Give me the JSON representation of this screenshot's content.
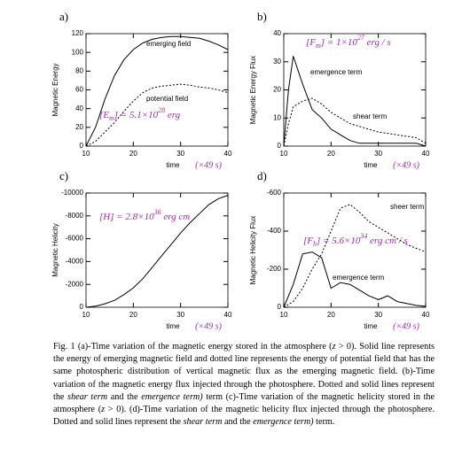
{
  "chart_data": [
    {
      "type": "line",
      "label": "a)",
      "ylabel": "Magnetic Energy",
      "xlabel": "time",
      "xunit": "(×49 s)",
      "annotation": [
        {
          "t": "[E"
        },
        {
          "t": "m",
          "sub": true
        },
        {
          "t": "] = 5.1×10"
        },
        {
          "t": "28",
          "sup": true
        },
        {
          "t": " erg"
        }
      ],
      "x": [
        10,
        12,
        14,
        16,
        18,
        20,
        22,
        24,
        26,
        28,
        30,
        32,
        34,
        36,
        38,
        40
      ],
      "series": [
        {
          "name": "emerging field",
          "color": "#000000",
          "dashed": false,
          "values": [
            0,
            20,
            50,
            75,
            92,
            103,
            110,
            114,
            116,
            117,
            117,
            116,
            115,
            112,
            108,
            103
          ]
        },
        {
          "name": "potential field",
          "color": "#000000",
          "dashed": true,
          "values": [
            0,
            5,
            15,
            25,
            37,
            48,
            57,
            62,
            64,
            65,
            66,
            65,
            63,
            62,
            60,
            57
          ]
        }
      ],
      "xlim": [
        10,
        40
      ],
      "xticks": [
        10,
        20,
        30,
        40
      ],
      "ylim": [
        0,
        120
      ],
      "yticks": [
        0,
        20,
        40,
        60,
        80,
        100,
        120
      ]
    },
    {
      "type": "line",
      "label": "b)",
      "ylabel": "Magnetic Energy Flux",
      "xlabel": "time",
      "xunit": "(×49 s)",
      "annotation": [
        {
          "t": "[F"
        },
        {
          "t": "m",
          "sub": true
        },
        {
          "t": "] = 1×10"
        },
        {
          "t": "27",
          "sup": true
        },
        {
          "t": " erg / s"
        }
      ],
      "x": [
        10,
        11,
        12,
        13,
        14,
        16,
        18,
        20,
        22,
        24,
        26,
        28,
        30,
        34,
        38,
        40
      ],
      "series": [
        {
          "name": "emergence term",
          "color": "#000000",
          "dashed": false,
          "values": [
            0,
            20,
            32,
            27,
            22,
            13,
            10,
            6,
            4,
            2,
            1,
            1,
            1,
            1,
            1,
            0
          ]
        },
        {
          "name": "shear term",
          "color": "#000000",
          "dashed": true,
          "values": [
            0,
            8,
            14,
            15,
            16,
            17,
            15,
            12,
            10,
            8,
            7,
            6,
            5,
            4,
            3,
            1
          ]
        }
      ],
      "xlim": [
        10,
        40
      ],
      "xticks": [
        10,
        20,
        30,
        40
      ],
      "ylim": [
        0,
        40
      ],
      "yticks": [
        0,
        10,
        20,
        30,
        40
      ]
    },
    {
      "type": "line",
      "label": "c)",
      "ylabel": "Magnetic Helicity",
      "xlabel": "time",
      "xunit": "(×49 s)",
      "annotation": [
        {
          "t": "[H] = 2.8×10"
        },
        {
          "t": "36",
          "sup": true
        },
        {
          "t": " erg cm"
        }
      ],
      "x": [
        10,
        12,
        14,
        16,
        18,
        20,
        22,
        24,
        26,
        28,
        30,
        32,
        34,
        36,
        38,
        40
      ],
      "series": [
        {
          "color": "#000000",
          "dashed": false,
          "values": [
            0,
            -100,
            -300,
            -600,
            -1100,
            -1700,
            -2500,
            -3500,
            -4500,
            -5500,
            -6500,
            -7400,
            -8200,
            -9000,
            -9500,
            -9800
          ]
        }
      ],
      "xlim": [
        10,
        40
      ],
      "xticks": [
        10,
        20,
        30,
        40
      ],
      "ylim": [
        0,
        -10000
      ],
      "yticks": [
        0,
        -2000,
        -4000,
        -6000,
        -8000,
        -10000
      ]
    },
    {
      "type": "line",
      "label": "d)",
      "ylabel": "Magnetic Helicity Flux",
      "xlabel": "time",
      "xunit": "(×49 s)",
      "annotation": [
        {
          "t": "[F"
        },
        {
          "t": "h",
          "sub": true
        },
        {
          "t": "] = 5.6×10"
        },
        {
          "t": "34",
          "sup": true
        },
        {
          "t": " erg cm / s"
        }
      ],
      "x": [
        10,
        12,
        14,
        16,
        18,
        20,
        22,
        24,
        26,
        28,
        30,
        32,
        34,
        36,
        38,
        40
      ],
      "series": [
        {
          "name": "sheer term",
          "color": "#000000",
          "dashed": true,
          "values": [
            0,
            -30,
            -100,
            -200,
            -280,
            -400,
            -520,
            -540,
            -500,
            -450,
            -420,
            -390,
            -360,
            -330,
            -310,
            -290
          ]
        },
        {
          "name": "emergence term",
          "color": "#000000",
          "dashed": false,
          "values": [
            0,
            -120,
            -280,
            -290,
            -260,
            -100,
            -130,
            -120,
            -90,
            -60,
            -40,
            -60,
            -30,
            -20,
            -10,
            -5
          ]
        }
      ],
      "xlim": [
        10,
        40
      ],
      "xticks": [
        10,
        20,
        30,
        40
      ],
      "ylim": [
        0,
        -600
      ],
      "yticks": [
        0,
        -200,
        -400,
        -600
      ]
    }
  ],
  "caption": [
    {
      "t": "Fig. 1 (a)-Time variation of the magnetic energy stored in the atmosphere ("
    },
    {
      "t": "z",
      "italic": true
    },
    {
      "t": " > 0). Solid line represents the energy of emerging magnetic field and dotted line represents the energy of potential field that has the same photospheric distribution of vertical magnetic flux as the emerging magnetic field. (b)-Time variation of the magnetic energy flux injected through the photosphere. Dotted and solid lines represent the "
    },
    {
      "t": "shear term",
      "italic": true
    },
    {
      "t": " and the "
    },
    {
      "t": "emergence term)",
      "italic": true
    },
    {
      "t": " term (c)-Time variation of the magnetic helicity stored in the atmosphere ("
    },
    {
      "t": "z",
      "italic": true
    },
    {
      "t": " > 0). (d)-Time variation of the magnetic helicity flux injected through the photosphere. Dotted and solid lines represent the "
    },
    {
      "t": "shear term",
      "italic": true
    },
    {
      "t": " and the "
    },
    {
      "t": "emergence term)",
      "italic": true
    },
    {
      "t": " term."
    }
  ]
}
